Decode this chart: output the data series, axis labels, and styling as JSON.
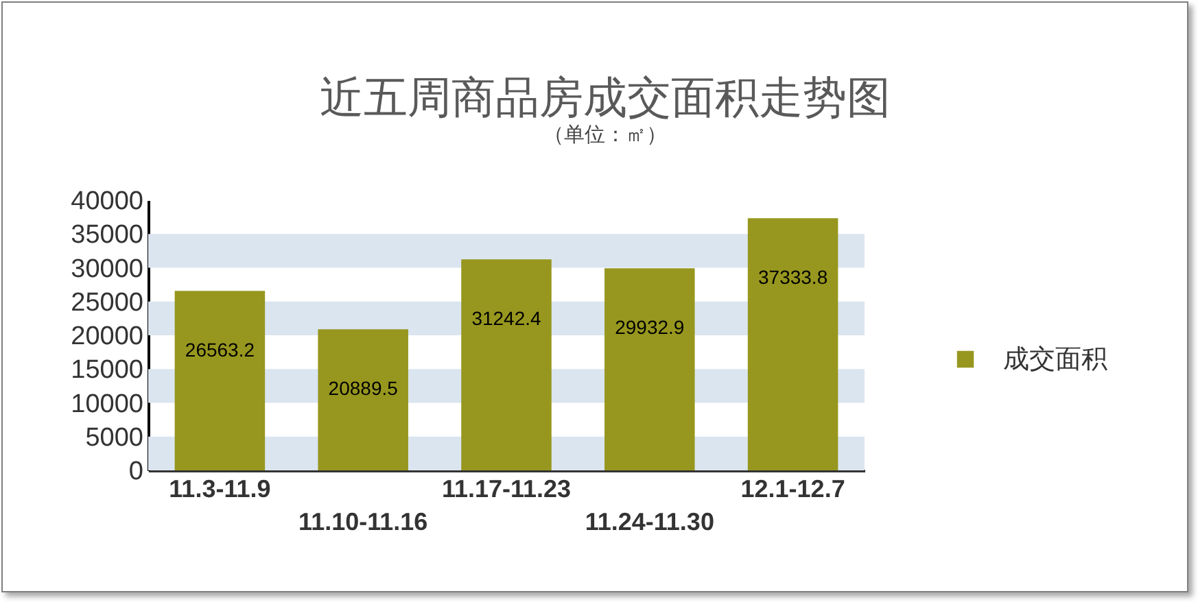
{
  "chart_data": {
    "type": "bar",
    "title": "近五周商品房成交面积走势图",
    "subtitle": "（单位：㎡）",
    "categories": [
      "11.3-11.9",
      "11.10-11.16",
      "11.17-11.23",
      "11.24-11.30",
      "12.1-12.7"
    ],
    "series": [
      {
        "name": "成交面积",
        "color": "#97971f",
        "values": [
          26563.2,
          20889.5,
          31242.4,
          29932.9,
          37333.8
        ]
      }
    ],
    "ylim": [
      0,
      40000
    ],
    "yticks": [
      0,
      5000,
      10000,
      15000,
      20000,
      25000,
      30000,
      35000,
      40000
    ],
    "data_labels": true,
    "legend": "right",
    "bands": [
      {
        "axis": "y",
        "from": 0,
        "to": 5000,
        "color": "#dbe5f0"
      },
      {
        "axis": "y",
        "from": 10000,
        "to": 15000,
        "color": "#dbe5f0"
      },
      {
        "axis": "y",
        "from": 20000,
        "to": 25000,
        "color": "#dbe5f0"
      },
      {
        "axis": "y",
        "from": 30000,
        "to": 35000,
        "color": "#dbe5f0"
      }
    ]
  }
}
